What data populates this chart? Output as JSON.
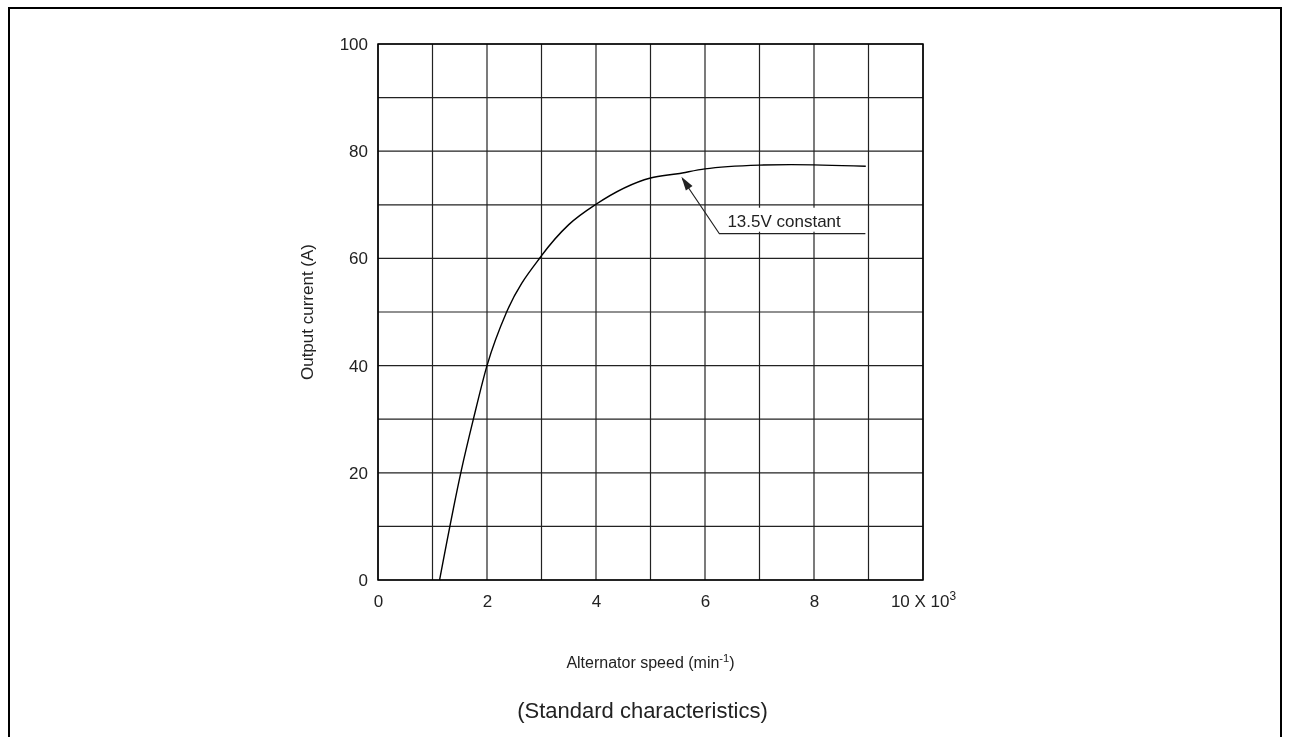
{
  "chart_data": {
    "type": "line",
    "xlabel": "Alternator speed (min$^{-1}$)",
    "ylabel": "Output current (A)",
    "xlim": [
      0,
      10
    ],
    "ylim": [
      0,
      100
    ],
    "xticks": [
      0,
      2,
      4,
      6,
      8,
      {
        "value": 10,
        "label": "10 X 10$^{3}$"
      }
    ],
    "yticks": [
      0,
      20,
      40,
      60,
      80,
      100
    ],
    "grid": true,
    "line_style": "solid",
    "marker": "none",
    "series": [
      {
        "color": "#000000",
        "x": [
          1.13,
          1.53,
          1.75,
          2.0,
          2.36,
          3.0,
          3.5,
          4.0,
          5.0,
          5.5,
          6.0,
          7.0,
          7.58,
          8.95
        ],
        "values": [
          0,
          20.5,
          30,
          40,
          50,
          60.5,
          66.3,
          70.1,
          75,
          75.8,
          76.7,
          77.4,
          77.5,
          77.2
        ]
      }
    ],
    "annotations": [
      {
        "text": "13.5V constant",
        "x": 5.53,
        "y": 75.8
      },
      "(Standard characteristics)"
    ]
  }
}
